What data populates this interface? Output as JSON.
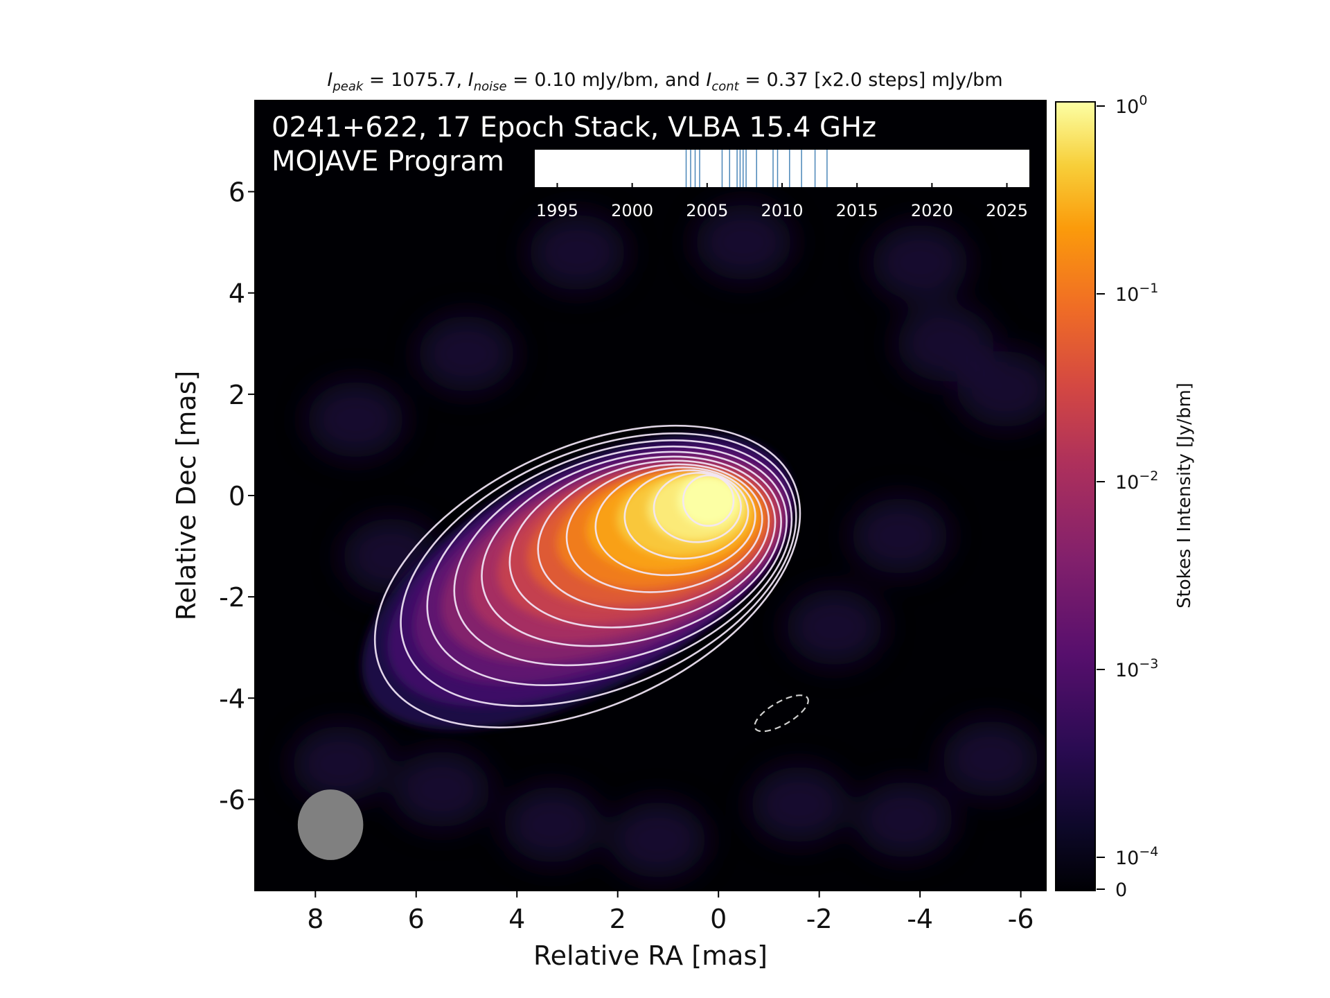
{
  "header": {
    "peak_sym": "I",
    "peak_sub": "peak",
    "peak_val": " = 1075.7, ",
    "noise_sym": "I",
    "noise_sub": "noise",
    "noise_val": " = 0.10 mJy/bm, and ",
    "cont_sym": "I",
    "cont_sub": "cont",
    "cont_val": " = 0.37 [x2.0 steps] mJy/bm"
  },
  "chart_data": {
    "type": "heatmap",
    "source_label": "0241+622, 17 Epoch Stack, VLBA 15.4 GHz",
    "program_label": "MOJAVE Program",
    "xlabel": "Relative RA [mas]",
    "ylabel": "Relative Dec [mas]",
    "xlim": [
      9.2,
      -6.5
    ],
    "ylim": [
      -7.8,
      7.8
    ],
    "xticks": [
      "8",
      "6",
      "4",
      "2",
      "0",
      "-2",
      "-4",
      "-6"
    ],
    "xtick_values": [
      8,
      6,
      4,
      2,
      0,
      -2,
      -4,
      -6
    ],
    "yticks": [
      "6",
      "4",
      "2",
      "0",
      "-2",
      "-4",
      "-6"
    ],
    "ytick_values": [
      6,
      4,
      2,
      0,
      -2,
      -4,
      -6
    ],
    "colormap": "inferno",
    "colorbar": {
      "label": "Stokes I Intensity [Jy/bm]",
      "tick_labels": [
        {
          "base": "10",
          "exp": "0",
          "value": 1.0
        },
        {
          "base": "10",
          "exp": "−1",
          "value": 0.1
        },
        {
          "base": "10",
          "exp": "−2",
          "value": 0.01
        },
        {
          "base": "10",
          "exp": "−3",
          "value": 0.001
        },
        {
          "base": "10",
          "exp": "−4",
          "value": 0.0001
        },
        {
          "base": "0",
          "exp": "",
          "value": 0
        }
      ]
    },
    "core": {
      "ra": 0.2,
      "dec": -0.1
    },
    "contour_levels_mJy": [
      0.37,
      0.74,
      1.48,
      2.96,
      5.92,
      11.84,
      23.68,
      47.36,
      94.72,
      189.44,
      378.88,
      757.76
    ],
    "beam": {
      "major_mas": 1.4,
      "minor_mas": 1.3,
      "center_ra": 7.7,
      "center_dec": -6.5
    },
    "dashed_ellipse": {
      "center_ra": -1.25,
      "center_dec": -4.3,
      "major_mas": 1.2,
      "minor_mas": 0.45,
      "pa_deg": 30
    },
    "epoch_timeline": {
      "xlim": [
        1993.5,
        2026.5
      ],
      "ticks": [
        "1995",
        "2000",
        "2005",
        "2010",
        "2015",
        "2020",
        "2025"
      ],
      "tick_values": [
        1995,
        2000,
        2005,
        2010,
        2015,
        2020,
        2025
      ],
      "epochs": [
        2003.6,
        2003.9,
        2004.2,
        2004.5,
        2006.0,
        2006.5,
        2007.0,
        2007.2,
        2007.4,
        2007.6,
        2008.3,
        2009.4,
        2009.7,
        2010.5,
        2011.3,
        2012.2,
        2013.0
      ]
    }
  }
}
